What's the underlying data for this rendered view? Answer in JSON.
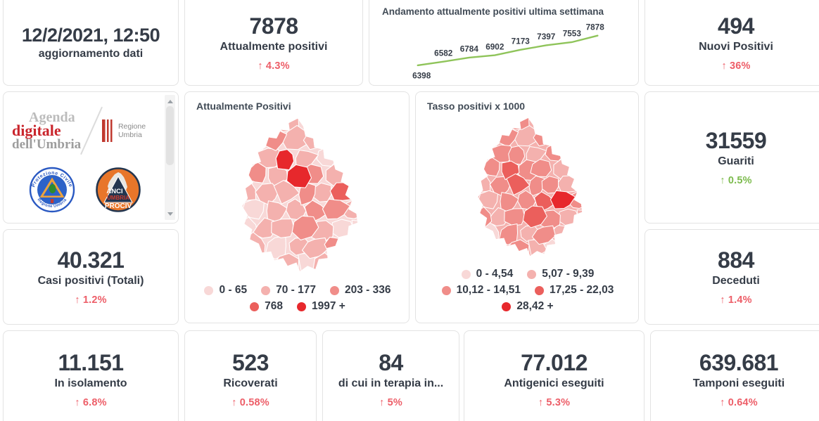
{
  "colors": {
    "text": "#353c47",
    "title": "#414b56",
    "card_border": "#e3e3e3",
    "delta_bad": "#ed5e68",
    "delta_good": "#7cbb4d",
    "line": "#8fc45a"
  },
  "updated": {
    "value": "12/2/2021, 12:50",
    "label": "aggiornamento dati"
  },
  "kpis": {
    "attualmente_positivi": {
      "value": "7878",
      "label": "Attualmente positivi",
      "delta": "↑ 4.3%"
    },
    "nuovi_positivi": {
      "value": "494",
      "label": "Nuovi Positivi",
      "delta": "↑ 36%"
    },
    "guariti": {
      "value": "31559",
      "label": "Guariti",
      "delta": "↑ 0.5%"
    },
    "casi_totali": {
      "value": "40.321",
      "label": "Casi positivi (Totali)",
      "delta": "↑ 1.2%"
    },
    "deceduti": {
      "value": "884",
      "label": "Deceduti",
      "delta": "↑ 1.4%"
    },
    "in_isolamento": {
      "value": "11.151",
      "label": "In isolamento",
      "delta": "↑ 6.8%"
    },
    "ricoverati": {
      "value": "523",
      "label": "Ricoverati",
      "delta": "↑ 0.58%"
    },
    "terapia_intensiva": {
      "value": "84",
      "label": "di cui in terapia in...",
      "delta": "↑ 5%"
    },
    "antigenici": {
      "value": "77.012",
      "label": "Antigenici eseguiti",
      "delta": "↑ 5.3%"
    },
    "tamponi": {
      "value": "639.681",
      "label": "Tamponi eseguiti",
      "delta": "↑ 0.64%"
    }
  },
  "chart_data": {
    "type": "line",
    "title": "Andamento attualmente positivi ultima settimana",
    "categories": [
      1,
      2,
      3,
      4,
      5,
      6,
      7,
      8
    ],
    "values": [
      6398,
      6582,
      6784,
      6902,
      7173,
      7397,
      7553,
      7878
    ],
    "line_color": "#8fc45a",
    "data_labels": true,
    "axes_visible": false,
    "grid": false,
    "legend_position": "none"
  },
  "maps": [
    {
      "title": "Attualmente Positivi",
      "base_level": 0,
      "legend": [
        {
          "label": "0 - 65",
          "color": "#f8d8d7"
        },
        {
          "label": "70 - 177",
          "color": "#f4b1ae"
        },
        {
          "label": "203 - 336",
          "color": "#f08d89"
        },
        {
          "label": "768",
          "color": "#eb5f5c"
        },
        {
          "label": "1997 +",
          "color": "#e7282c"
        }
      ],
      "legend_rows": [
        [
          0,
          1,
          2
        ],
        [
          3,
          4
        ]
      ],
      "levels": [
        0,
        1,
        1,
        1,
        0,
        0,
        0,
        0,
        0,
        1,
        2,
        1,
        1,
        1,
        0,
        0,
        0,
        1,
        1,
        4,
        1,
        0,
        1,
        0,
        1,
        2,
        1,
        4,
        2,
        1,
        0,
        0,
        0,
        1,
        1,
        1,
        2,
        1,
        3,
        1,
        0,
        0,
        1,
        1,
        2,
        2,
        1,
        0,
        1,
        0,
        1,
        1,
        2,
        1,
        0,
        0,
        0,
        1,
        0,
        1,
        1,
        2,
        0,
        0,
        0,
        0,
        1,
        1,
        0,
        1,
        0,
        0
      ]
    },
    {
      "title": "Tasso positivi x 1000",
      "base_level": 1,
      "legend": [
        {
          "label": "0 - 4,54",
          "color": "#f8d8d7"
        },
        {
          "label": "5,07 - 9,39",
          "color": "#f4b1ae"
        },
        {
          "label": "10,12 - 14,51",
          "color": "#f08d89"
        },
        {
          "label": "17,25 - 22,03",
          "color": "#eb5f5c"
        },
        {
          "label": "28,42 +",
          "color": "#e7282c"
        }
      ],
      "legend_rows": [
        [
          0,
          1
        ],
        [
          2,
          3
        ],
        [
          4
        ]
      ],
      "levels": [
        1,
        2,
        1,
        2,
        1,
        1,
        0,
        0,
        1,
        2,
        2,
        1,
        2,
        1,
        1,
        0,
        2,
        1,
        2,
        2,
        1,
        2,
        3,
        1,
        1,
        2,
        3,
        2,
        2,
        1,
        3,
        1,
        0,
        1,
        2,
        3,
        2,
        2,
        1,
        1,
        1,
        1,
        2,
        2,
        3,
        4,
        2,
        0,
        0,
        2,
        1,
        2,
        3,
        2,
        1,
        1,
        1,
        0,
        2,
        1,
        2,
        1,
        0,
        0,
        0,
        1,
        1,
        2,
        1,
        0,
        0,
        0
      ]
    }
  ],
  "logos": {
    "agenda": {
      "line1": "Agenda",
      "line2": "digitale",
      "line3": "dell'Umbria"
    },
    "regione": {
      "label": "Regione Umbria"
    },
    "protezione": {
      "top": "Protezione Civile",
      "bottom": "Regione Umbria"
    },
    "anci": {
      "line1": "ANCI",
      "line2": "UMBRIA",
      "line3": "PROCIV"
    }
  }
}
